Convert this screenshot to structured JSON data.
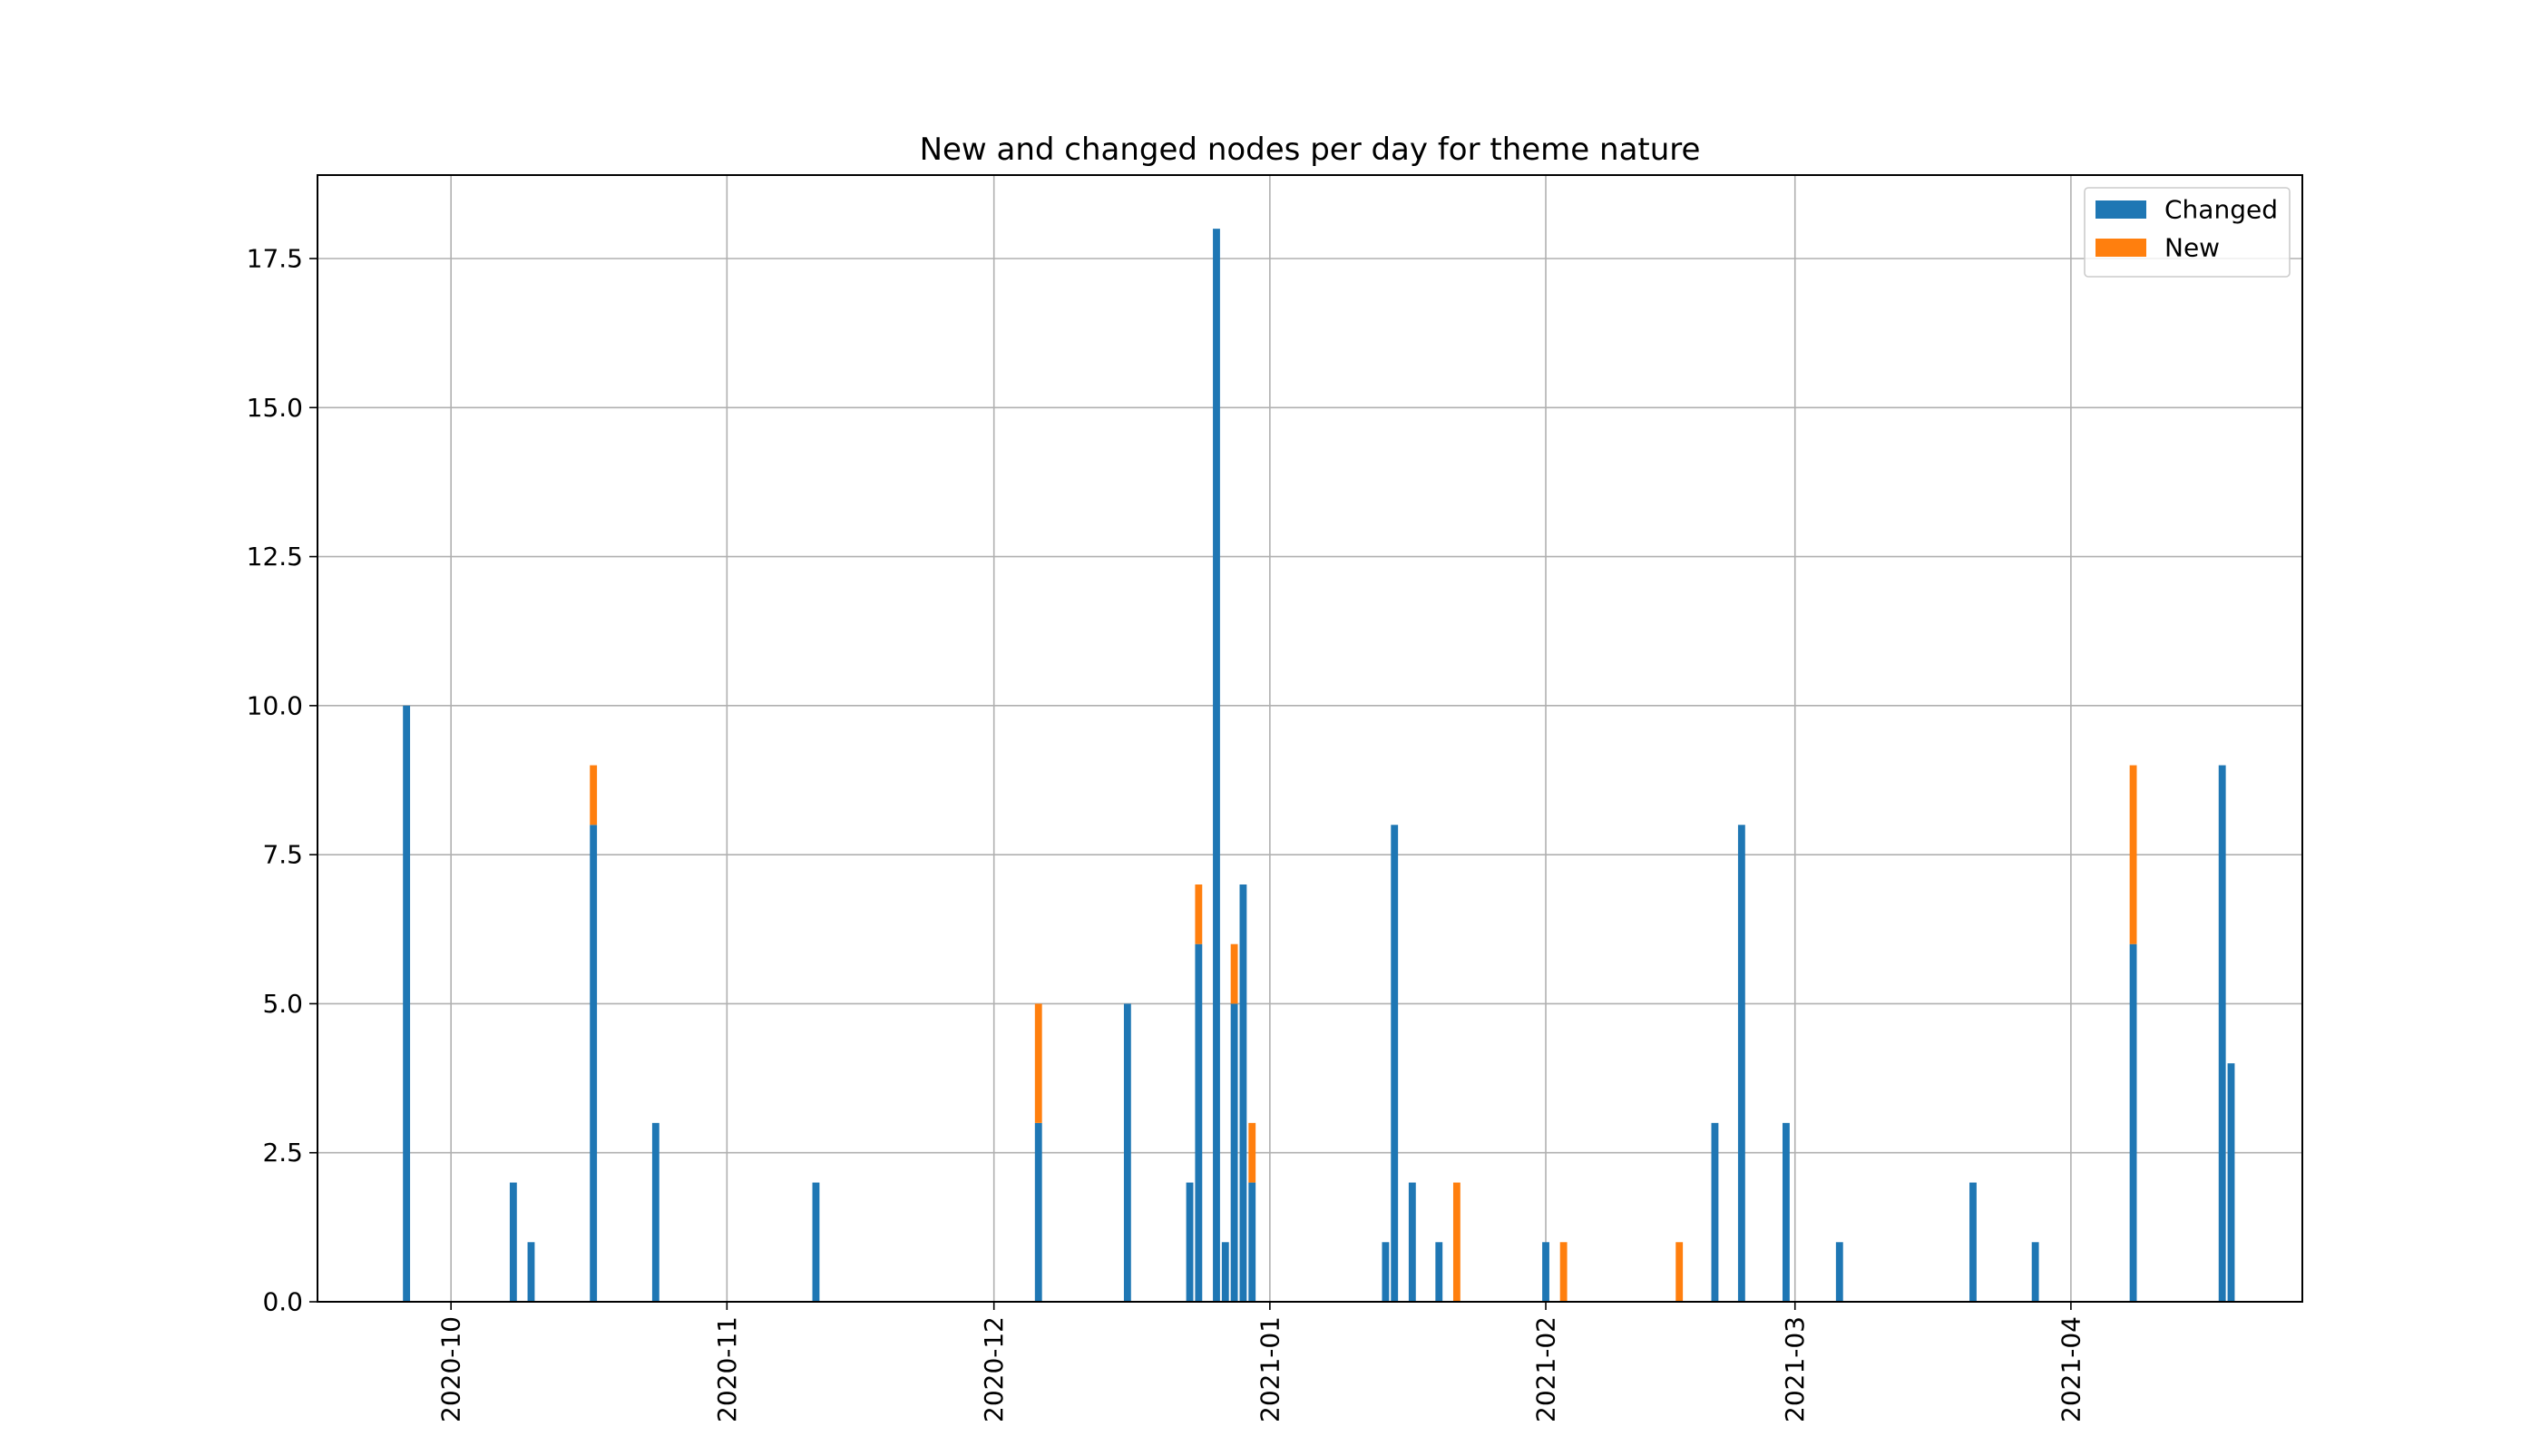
{
  "chart_data": {
    "type": "bar",
    "stacked": true,
    "title": "New and changed nodes per day for theme nature",
    "xlabel": "",
    "ylabel": "",
    "xlim": [
      "2020-09-16",
      "2021-04-27"
    ],
    "ylim": [
      0,
      18.9
    ],
    "grid": true,
    "legend_position": "upper right",
    "xticks": [
      "2020-10-01",
      "2020-11-01",
      "2020-12-01",
      "2021-01-01",
      "2021-02-01",
      "2021-03-01",
      "2021-04-01"
    ],
    "xtick_labels": [
      "2020-10",
      "2020-11",
      "2020-12",
      "2021-01",
      "2021-02",
      "2021-03",
      "2021-04"
    ],
    "yticks": [
      0,
      2.5,
      5,
      7.5,
      10,
      12.5,
      15,
      17.5
    ],
    "ytick_labels": [
      "0.0",
      "2.5",
      "5.0",
      "7.5",
      "10.0",
      "12.5",
      "15.0",
      "17.5"
    ],
    "series": [
      {
        "name": "Changed",
        "color": "#1f77b4",
        "points": [
          {
            "date": "2020-09-26",
            "value": 10
          },
          {
            "date": "2020-10-08",
            "value": 2
          },
          {
            "date": "2020-10-10",
            "value": 1
          },
          {
            "date": "2020-10-17",
            "value": 8
          },
          {
            "date": "2020-10-24",
            "value": 3
          },
          {
            "date": "2020-11-11",
            "value": 2
          },
          {
            "date": "2020-12-06",
            "value": 3
          },
          {
            "date": "2020-12-16",
            "value": 5
          },
          {
            "date": "2020-12-23",
            "value": 2
          },
          {
            "date": "2020-12-24",
            "value": 6
          },
          {
            "date": "2020-12-26",
            "value": 18
          },
          {
            "date": "2020-12-27",
            "value": 1
          },
          {
            "date": "2020-12-28",
            "value": 5
          },
          {
            "date": "2020-12-29",
            "value": 7
          },
          {
            "date": "2020-12-30",
            "value": 2
          },
          {
            "date": "2021-01-14",
            "value": 1
          },
          {
            "date": "2021-01-15",
            "value": 8
          },
          {
            "date": "2021-01-17",
            "value": 2
          },
          {
            "date": "2021-01-20",
            "value": 1
          },
          {
            "date": "2021-02-01",
            "value": 1
          },
          {
            "date": "2021-02-20",
            "value": 3
          },
          {
            "date": "2021-02-23",
            "value": 8
          },
          {
            "date": "2021-02-28",
            "value": 3
          },
          {
            "date": "2021-03-06",
            "value": 1
          },
          {
            "date": "2021-03-21",
            "value": 2
          },
          {
            "date": "2021-03-28",
            "value": 1
          },
          {
            "date": "2021-04-08",
            "value": 6
          },
          {
            "date": "2021-04-18",
            "value": 9
          },
          {
            "date": "2021-04-19",
            "value": 4
          }
        ]
      },
      {
        "name": "New",
        "color": "#ff7f0e",
        "points": [
          {
            "date": "2020-10-17",
            "value": 1
          },
          {
            "date": "2020-12-06",
            "value": 2
          },
          {
            "date": "2020-12-24",
            "value": 1
          },
          {
            "date": "2020-12-28",
            "value": 1
          },
          {
            "date": "2020-12-30",
            "value": 1
          },
          {
            "date": "2021-01-22",
            "value": 2
          },
          {
            "date": "2021-02-03",
            "value": 1
          },
          {
            "date": "2021-02-16",
            "value": 1
          },
          {
            "date": "2021-04-08",
            "value": 3
          }
        ]
      }
    ]
  }
}
